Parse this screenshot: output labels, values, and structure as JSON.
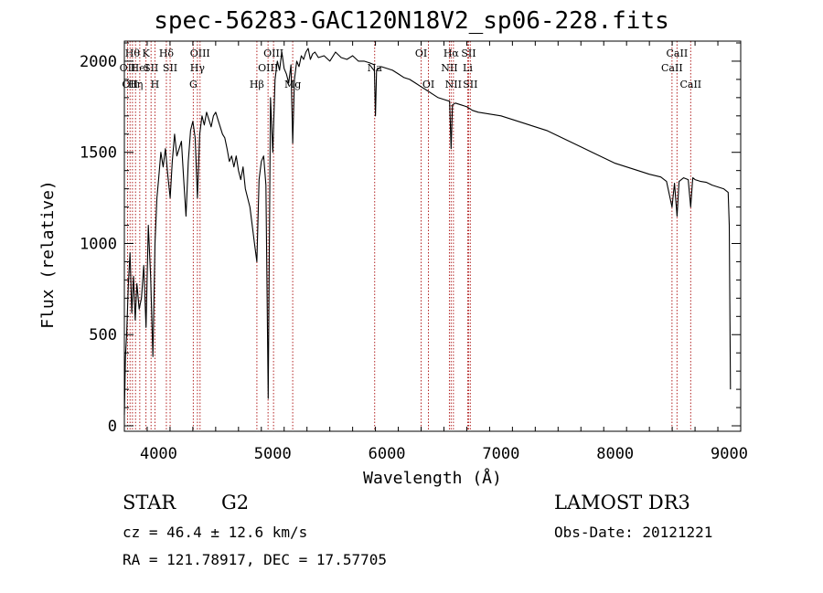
{
  "title": "spec-56283-GAC120N18V2_sp06-228.fits",
  "info": {
    "object_class": "STAR",
    "subclass": "G2",
    "survey": "LAMOST DR3",
    "cz": "cz = 46.4 ± 12.6 km/s",
    "obs_date": "Obs-Date: 20121221",
    "coords": "RA = 121.78917, DEC =  17.57705"
  },
  "chart_data": {
    "type": "line",
    "title": "spec-56283-GAC120N18V2_sp06-228.fits",
    "xlabel": "Wavelength (Å)",
    "ylabel": "Flux (relative)",
    "xlim": [
      3700,
      9100
    ],
    "ylim": [
      -30,
      2110
    ],
    "xticks": [
      4000,
      5000,
      6000,
      7000,
      8000,
      9000
    ],
    "xtick_labels": [
      "4000",
      "5000",
      "6000",
      "7000",
      "8000",
      "9000"
    ],
    "yticks": [
      0,
      500,
      1000,
      1500,
      2000
    ],
    "ytick_labels": [
      "0",
      "500",
      "1000",
      "1500",
      "2000"
    ],
    "series": [
      {
        "name": "flux",
        "x": [
          3700,
          3710,
          3720,
          3735,
          3750,
          3765,
          3780,
          3795,
          3810,
          3830,
          3850,
          3870,
          3890,
          3910,
          3930,
          3950,
          3968,
          3985,
          4000,
          4020,
          4040,
          4060,
          4080,
          4101,
          4120,
          4140,
          4160,
          4180,
          4200,
          4220,
          4240,
          4260,
          4280,
          4300,
          4320,
          4340,
          4360,
          4380,
          4400,
          4420,
          4440,
          4460,
          4480,
          4500,
          4520,
          4540,
          4560,
          4580,
          4600,
          4620,
          4640,
          4660,
          4680,
          4700,
          4720,
          4740,
          4760,
          4780,
          4800,
          4820,
          4840,
          4861,
          4880,
          4900,
          4920,
          4940,
          4960,
          4980,
          5000,
          5020,
          5040,
          5060,
          5080,
          5100,
          5120,
          5140,
          5160,
          5175,
          5190,
          5210,
          5230,
          5250,
          5270,
          5290,
          5310,
          5330,
          5350,
          5370,
          5400,
          5450,
          5500,
          5550,
          5600,
          5650,
          5700,
          5750,
          5800,
          5850,
          5890,
          5900,
          5910,
          5950,
          6000,
          6050,
          6100,
          6150,
          6200,
          6250,
          6300,
          6350,
          6400,
          6450,
          6500,
          6550,
          6563,
          6575,
          6600,
          6650,
          6700,
          6750,
          6800,
          6850,
          6900,
          7000,
          7100,
          7200,
          7300,
          7400,
          7500,
          7600,
          7700,
          7800,
          7900,
          8000,
          8100,
          8200,
          8300,
          8400,
          8450,
          8498,
          8520,
          8542,
          8560,
          8600,
          8640,
          8662,
          8680,
          8700,
          8750,
          8800,
          8850,
          8900,
          8950,
          8990,
          9000,
          9010
        ],
        "values": [
          60,
          380,
          500,
          780,
          950,
          620,
          820,
          580,
          780,
          640,
          700,
          880,
          540,
          1100,
          820,
          380,
          1000,
          1250,
          1350,
          1500,
          1420,
          1520,
          1380,
          1250,
          1450,
          1600,
          1480,
          1520,
          1560,
          1350,
          1150,
          1450,
          1620,
          1670,
          1580,
          1250,
          1600,
          1700,
          1650,
          1720,
          1680,
          1640,
          1700,
          1720,
          1680,
          1640,
          1600,
          1580,
          1520,
          1450,
          1480,
          1420,
          1480,
          1400,
          1350,
          1420,
          1300,
          1250,
          1200,
          1100,
          1000,
          900,
          1350,
          1450,
          1480,
          1320,
          150,
          1800,
          1500,
          1900,
          2000,
          1950,
          2050,
          1960,
          1930,
          1880,
          1980,
          1550,
          1900,
          2000,
          1970,
          2030,
          2010,
          2050,
          2070,
          2010,
          2040,
          2050,
          2020,
          2030,
          2000,
          2050,
          2020,
          2010,
          2030,
          2000,
          2000,
          1990,
          1980,
          1700,
          1950,
          1970,
          1960,
          1950,
          1930,
          1910,
          1900,
          1880,
          1860,
          1840,
          1820,
          1800,
          1790,
          1780,
          1520,
          1760,
          1770,
          1760,
          1750,
          1730,
          1720,
          1715,
          1710,
          1700,
          1680,
          1660,
          1640,
          1620,
          1590,
          1560,
          1530,
          1500,
          1470,
          1440,
          1420,
          1400,
          1380,
          1365,
          1340,
          1200,
          1330,
          1150,
          1340,
          1360,
          1350,
          1200,
          1360,
          1350,
          1340,
          1335,
          1320,
          1310,
          1300,
          1280,
          1100,
          200
        ]
      }
    ],
    "line_markers": [
      {
        "wavelength": 3728,
        "label": "OII",
        "row": 2
      },
      {
        "wavelength": 3750,
        "label": "OII",
        "row": 3
      },
      {
        "wavelength": 3771,
        "label": "Hθ",
        "row": 1
      },
      {
        "wavelength": 3798,
        "label": "Hη",
        "row": 3
      },
      {
        "wavelength": 3835,
        "label": "HeI",
        "row": 2
      },
      {
        "wavelength": 3889,
        "label": "K",
        "row": 1
      },
      {
        "wavelength": 3934,
        "label": "SII",
        "row": 2
      },
      {
        "wavelength": 3968,
        "label": "H",
        "row": 3
      },
      {
        "wavelength": 4068,
        "label": "Hδ",
        "row": 1
      },
      {
        "wavelength": 4101,
        "label": "SII",
        "row": 2
      },
      {
        "wavelength": 4304,
        "label": "G",
        "row": 3
      },
      {
        "wavelength": 4340,
        "label": "Hγ",
        "row": 2
      },
      {
        "wavelength": 4363,
        "label": "OIII",
        "row": 1
      },
      {
        "wavelength": 4861,
        "label": "Hβ",
        "row": 3
      },
      {
        "wavelength": 4959,
        "label": "OIII",
        "row": 2
      },
      {
        "wavelength": 5007,
        "label": "OIII",
        "row": 1
      },
      {
        "wavelength": 5175,
        "label": "Mg",
        "row": 3
      },
      {
        "wavelength": 5893,
        "label": "Na",
        "row": 2
      },
      {
        "wavelength": 6300,
        "label": "OI",
        "row": 1
      },
      {
        "wavelength": 6364,
        "label": "OI",
        "row": 3
      },
      {
        "wavelength": 6548,
        "label": "NII",
        "row": 2
      },
      {
        "wavelength": 6563,
        "label": "Hα",
        "row": 1
      },
      {
        "wavelength": 6583,
        "label": "NII",
        "row": 3
      },
      {
        "wavelength": 6708,
        "label": "Li",
        "row": 2
      },
      {
        "wavelength": 6716,
        "label": "SII",
        "row": 1
      },
      {
        "wavelength": 6731,
        "label": "SII",
        "row": 3
      },
      {
        "wavelength": 8498,
        "label": "CaII",
        "row": 2
      },
      {
        "wavelength": 8542,
        "label": "CaII",
        "row": 1
      },
      {
        "wavelength": 8662,
        "label": "CaII",
        "row": 3
      }
    ]
  }
}
